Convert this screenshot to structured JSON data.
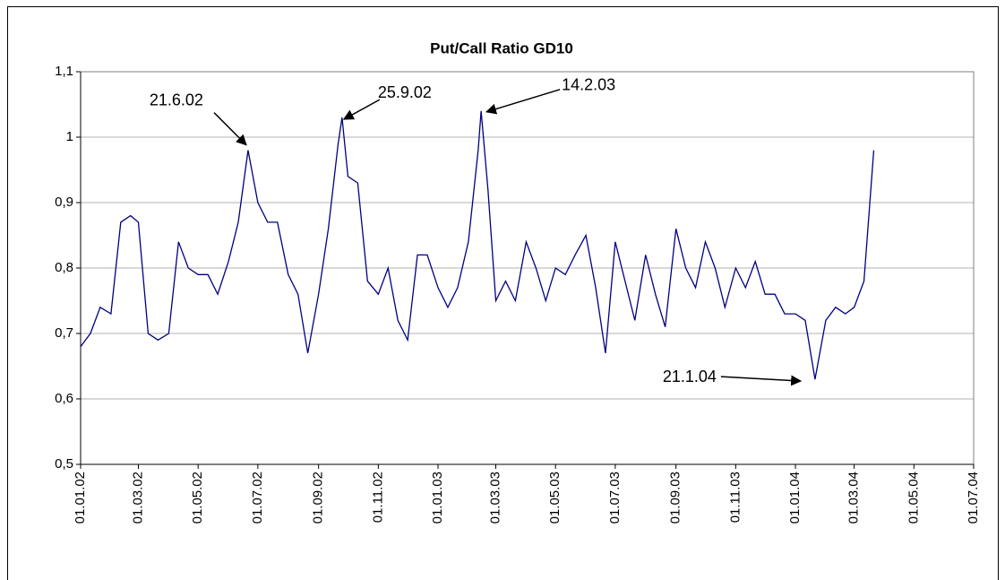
{
  "chart_data": {
    "type": "line",
    "title": "Put/Call Ratio GD10",
    "color": "#000080",
    "grid": true,
    "xlim": [
      "2002-01-01",
      "2004-07-01"
    ],
    "xticks": [
      {
        "value": "2002-01-01",
        "label": "01.01.02"
      },
      {
        "value": "2002-03-01",
        "label": "01.03.02"
      },
      {
        "value": "2002-05-01",
        "label": "01.05.02"
      },
      {
        "value": "2002-07-01",
        "label": "01.07.02"
      },
      {
        "value": "2002-09-01",
        "label": "01.09.02"
      },
      {
        "value": "2002-11-01",
        "label": "01.11.02"
      },
      {
        "value": "2003-01-01",
        "label": "01.01.03"
      },
      {
        "value": "2003-03-01",
        "label": "01.03.03"
      },
      {
        "value": "2003-05-01",
        "label": "01.05.03"
      },
      {
        "value": "2003-07-01",
        "label": "01.07.03"
      },
      {
        "value": "2003-09-01",
        "label": "01.09.03"
      },
      {
        "value": "2003-11-01",
        "label": "01.11.03"
      },
      {
        "value": "2004-01-01",
        "label": "01.01.04"
      },
      {
        "value": "2004-03-01",
        "label": "01.03.04"
      },
      {
        "value": "2004-05-01",
        "label": "01.05.04"
      },
      {
        "value": "2004-07-01",
        "label": "01.07.04"
      }
    ],
    "ylim": [
      0.5,
      1.1
    ],
    "yticks": [
      {
        "value": 0.5,
        "label": "0,5"
      },
      {
        "value": 0.6,
        "label": "0,6"
      },
      {
        "value": 0.7,
        "label": "0,7"
      },
      {
        "value": 0.8,
        "label": "0,8"
      },
      {
        "value": 0.9,
        "label": "0,9"
      },
      1,
      {
        "value": 1.1,
        "label": "1,1"
      }
    ],
    "x": [
      "2002-01-01",
      "2002-01-11",
      "2002-01-21",
      "2002-02-01",
      "2002-02-11",
      "2002-02-21",
      "2002-03-01",
      "2002-03-11",
      "2002-03-21",
      "2002-04-01",
      "2002-04-11",
      "2002-04-21",
      "2002-05-01",
      "2002-05-11",
      "2002-05-21",
      "2002-06-01",
      "2002-06-11",
      "2002-06-21",
      "2002-07-01",
      "2002-07-11",
      "2002-07-21",
      "2002-08-01",
      "2002-08-11",
      "2002-08-21",
      "2002-09-01",
      "2002-09-11",
      "2002-09-21",
      "2002-09-25",
      "2002-10-01",
      "2002-10-11",
      "2002-10-21",
      "2002-11-01",
      "2002-11-11",
      "2002-11-21",
      "2002-12-01",
      "2002-12-11",
      "2002-12-21",
      "2003-01-01",
      "2003-01-11",
      "2003-01-21",
      "2003-02-01",
      "2003-02-11",
      "2003-02-14",
      "2003-02-21",
      "2003-03-01",
      "2003-03-11",
      "2003-03-21",
      "2003-04-01",
      "2003-04-11",
      "2003-04-21",
      "2003-05-01",
      "2003-05-11",
      "2003-05-21",
      "2003-06-01",
      "2003-06-11",
      "2003-06-21",
      "2003-07-01",
      "2003-07-11",
      "2003-07-21",
      "2003-08-01",
      "2003-08-11",
      "2003-08-21",
      "2003-09-01",
      "2003-09-11",
      "2003-09-21",
      "2003-10-01",
      "2003-10-11",
      "2003-10-21",
      "2003-11-01",
      "2003-11-11",
      "2003-11-21",
      "2003-12-01",
      "2003-12-11",
      "2003-12-21",
      "2004-01-01",
      "2004-01-11",
      "2004-01-21",
      "2004-02-01",
      "2004-02-11",
      "2004-02-21",
      "2004-03-01",
      "2004-03-11",
      "2004-03-21"
    ],
    "values": [
      0.68,
      0.7,
      0.74,
      0.73,
      0.87,
      0.88,
      0.87,
      0.7,
      0.69,
      0.7,
      0.84,
      0.8,
      0.79,
      0.79,
      0.76,
      0.81,
      0.87,
      0.98,
      0.9,
      0.87,
      0.87,
      0.79,
      0.76,
      0.67,
      0.76,
      0.86,
      0.99,
      1.03,
      0.94,
      0.93,
      0.78,
      0.76,
      0.8,
      0.72,
      0.69,
      0.82,
      0.82,
      0.77,
      0.74,
      0.77,
      0.84,
      0.98,
      1.04,
      0.92,
      0.75,
      0.78,
      0.75,
      0.84,
      0.8,
      0.75,
      0.8,
      0.79,
      0.82,
      0.85,
      0.77,
      0.67,
      0.84,
      0.78,
      0.72,
      0.82,
      0.76,
      0.71,
      0.86,
      0.8,
      0.77,
      0.84,
      0.8,
      0.74,
      0.8,
      0.77,
      0.81,
      0.76,
      0.76,
      0.73,
      0.73,
      0.72,
      0.63,
      0.72,
      0.74,
      0.73,
      0.74,
      0.78,
      0.98
    ],
    "annotations": [
      {
        "text": "21.6.02",
        "x": "2002-06-21",
        "y": 0.98
      },
      {
        "text": "25.9.02",
        "x": "2002-09-25",
        "y": 1.03
      },
      {
        "text": "14.2.03",
        "x": "2003-02-14",
        "y": 1.04
      },
      {
        "text": "21.1.04",
        "x": "2004-01-21",
        "y": 0.63
      }
    ]
  }
}
